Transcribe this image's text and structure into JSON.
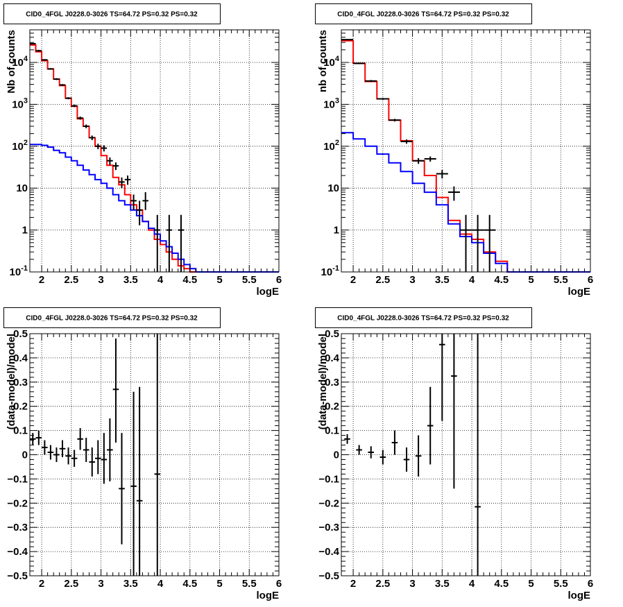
{
  "chart_data": [
    {
      "type": "line",
      "title": "CID0_4FGL J0228.0-3026 TS=64.72 PS=0.32 PS=0.32",
      "xlabel": "logE",
      "ylabel": "Nb of counts",
      "xlim": [
        1.8,
        6.0
      ],
      "ylim": [
        0.1,
        60000
      ],
      "yscale": "log",
      "grid": true,
      "x_ticks": [
        "2",
        "2.5",
        "3",
        "3.5",
        "4",
        "4.5",
        "5",
        "5.5",
        "6"
      ],
      "y_ticks": [
        "10^-1",
        "1",
        "10",
        "10^2",
        "10^3",
        "10^4"
      ],
      "bin_edges": [
        1.8,
        1.9,
        2.0,
        2.1,
        2.2,
        2.3,
        2.4,
        2.5,
        2.6,
        2.7,
        2.8,
        2.9,
        3.0,
        3.1,
        3.2,
        3.3,
        3.4,
        3.5,
        3.6,
        3.7,
        3.8,
        3.9,
        4.0,
        4.1,
        4.2,
        4.3,
        4.4,
        4.5,
        4.6,
        4.7,
        4.8,
        4.9,
        5.0,
        5.1,
        5.2,
        5.3,
        5.4,
        5.5,
        5.6,
        5.7,
        5.8,
        5.9,
        6.0
      ],
      "series": [
        {
          "color": "#ff0000",
          "values": [
            26000,
            18000,
            11000,
            7000,
            4000,
            2800,
            1400,
            900,
            450,
            300,
            160,
            100,
            60,
            35,
            18,
            12,
            7,
            4,
            3,
            1.6,
            1.0,
            0.6,
            0.45,
            0.3,
            0.2,
            0.14,
            0.12,
            0.1,
            0.1,
            0.1,
            0.1,
            0.1,
            0.1,
            0.1,
            0.1,
            0.1,
            0.1,
            0.1,
            0.1,
            0.1,
            0.1,
            0.1
          ]
        },
        {
          "color": "#0000ff",
          "values": [
            110,
            110,
            105,
            95,
            80,
            70,
            55,
            45,
            35,
            27,
            21,
            16,
            13,
            10,
            7,
            5,
            4,
            3,
            2.2,
            1.6,
            1.1,
            0.8,
            0.55,
            0.4,
            0.28,
            0.2,
            0.15,
            0.12,
            0.1,
            0.1,
            0.1,
            0.1,
            0.1,
            0.1,
            0.1,
            0.1,
            0.1,
            0.1,
            0.1,
            0.1,
            0.1,
            0.1
          ]
        },
        {
          "color": "#000000",
          "kind": "errorbars",
          "points": [
            {
              "x": 1.85,
              "y": 28000,
              "lo": 27000,
              "hi": 29000
            },
            {
              "x": 1.95,
              "y": 19000,
              "lo": 18000,
              "hi": 20000
            },
            {
              "x": 2.05,
              "y": 11500,
              "lo": 11000,
              "hi": 12000
            },
            {
              "x": 2.15,
              "y": 7000,
              "lo": 6700,
              "hi": 7300
            },
            {
              "x": 2.25,
              "y": 4000,
              "lo": 3800,
              "hi": 4200
            },
            {
              "x": 2.35,
              "y": 2900,
              "lo": 2750,
              "hi": 3050
            },
            {
              "x": 2.45,
              "y": 1400,
              "lo": 1320,
              "hi": 1480
            },
            {
              "x": 2.55,
              "y": 920,
              "lo": 860,
              "hi": 980
            },
            {
              "x": 2.65,
              "y": 470,
              "lo": 430,
              "hi": 510
            },
            {
              "x": 2.75,
              "y": 300,
              "lo": 270,
              "hi": 330
            },
            {
              "x": 2.85,
              "y": 160,
              "lo": 140,
              "hi": 180
            },
            {
              "x": 2.95,
              "y": 100,
              "lo": 85,
              "hi": 115
            },
            {
              "x": 3.05,
              "y": 90,
              "lo": 75,
              "hi": 105
            },
            {
              "x": 3.15,
              "y": 45,
              "lo": 36,
              "hi": 54
            },
            {
              "x": 3.25,
              "y": 34,
              "lo": 27,
              "hi": 41
            },
            {
              "x": 3.35,
              "y": 14,
              "lo": 10,
              "hi": 18
            },
            {
              "x": 3.45,
              "y": 16,
              "lo": 12,
              "hi": 20
            },
            {
              "x": 3.55,
              "y": 5,
              "lo": 3,
              "hi": 7
            },
            {
              "x": 3.65,
              "y": 3,
              "lo": 1.3,
              "hi": 5
            },
            {
              "x": 3.75,
              "y": 5,
              "lo": 3,
              "hi": 8
            },
            {
              "x": 3.95,
              "y": 1,
              "lo": 0.1,
              "hi": 2.3
            },
            {
              "x": 4.15,
              "y": 1,
              "lo": 0.1,
              "hi": 2.3
            },
            {
              "x": 4.35,
              "y": 1,
              "lo": 0.1,
              "hi": 2.3
            }
          ]
        }
      ]
    },
    {
      "type": "line",
      "title": "CID0_4FGL J0228.0-3026 TS=64.72 PS=0.32 PS=0.32",
      "xlabel": "logE",
      "ylabel": "nb of counts",
      "xlim": [
        1.8,
        6.0
      ],
      "ylim": [
        0.1,
        60000
      ],
      "yscale": "log",
      "grid": true,
      "x_ticks": [
        "2",
        "2.5",
        "3",
        "3.5",
        "4",
        "4.5",
        "5",
        "5.5",
        "6"
      ],
      "y_ticks": [
        "10^-1",
        "1",
        "10",
        "10^2",
        "10^3",
        "10^4"
      ],
      "bin_edges": [
        1.8,
        2.0,
        2.2,
        2.4,
        2.6,
        2.8,
        3.0,
        3.2,
        3.4,
        3.6,
        3.8,
        4.0,
        4.2,
        4.4,
        4.6,
        4.8,
        5.0,
        5.2,
        5.4,
        5.6,
        5.8,
        6.0
      ],
      "series": [
        {
          "color": "#ff0000",
          "values": [
            33000,
            9500,
            3500,
            1350,
            420,
            135,
            45,
            20,
            6,
            1.7,
            0.8,
            0.6,
            0.3,
            0.18,
            0.1,
            0.1,
            0.1,
            0.1,
            0.1,
            0.1,
            0.1
          ]
        },
        {
          "color": "#0000ff",
          "values": [
            210,
            150,
            100,
            65,
            40,
            25,
            13,
            8,
            4,
            1.4,
            0.7,
            0.5,
            0.28,
            0.16,
            0.1,
            0.1,
            0.1,
            0.1,
            0.1,
            0.1,
            0.1
          ]
        },
        {
          "color": "#000000",
          "kind": "errorbars",
          "points": [
            {
              "x": 1.9,
              "y": 35000,
              "lo": 34000,
              "hi": 36000
            },
            {
              "x": 2.1,
              "y": 9500,
              "lo": 9100,
              "hi": 9900
            },
            {
              "x": 2.3,
              "y": 3600,
              "lo": 3400,
              "hi": 3800
            },
            {
              "x": 2.5,
              "y": 1350,
              "lo": 1280,
              "hi": 1420
            },
            {
              "x": 2.7,
              "y": 420,
              "lo": 390,
              "hi": 450
            },
            {
              "x": 2.9,
              "y": 130,
              "lo": 115,
              "hi": 145
            },
            {
              "x": 3.1,
              "y": 45,
              "lo": 38,
              "hi": 52
            },
            {
              "x": 3.3,
              "y": 50,
              "lo": 43,
              "hi": 57
            },
            {
              "x": 3.5,
              "y": 22,
              "lo": 17,
              "hi": 27
            },
            {
              "x": 3.7,
              "y": 8,
              "lo": 5,
              "hi": 11
            },
            {
              "x": 3.9,
              "y": 1,
              "lo": 0.1,
              "hi": 2.3
            },
            {
              "x": 4.1,
              "y": 1,
              "lo": 0.1,
              "hi": 2.3
            },
            {
              "x": 4.3,
              "y": 1,
              "lo": 0.1,
              "hi": 2.3
            }
          ]
        }
      ]
    },
    {
      "type": "scatter",
      "title": "CID0_4FGL J0228.0-3026 TS=64.72 PS=0.32 PS=0.32",
      "xlabel": "logE",
      "ylabel": "(data-model)/model",
      "xlim": [
        1.8,
        6.0
      ],
      "ylim": [
        -0.5,
        0.5
      ],
      "grid": true,
      "x_ticks": [
        "2",
        "2.5",
        "3",
        "3.5",
        "4",
        "4.5",
        "5",
        "5.5",
        "6"
      ],
      "y_ticks": [
        "-0.5",
        "-0.4",
        "-0.3",
        "-0.2",
        "-0.1",
        "0",
        "0.1",
        "0.2",
        "0.3",
        "0.4",
        "0.5"
      ],
      "series": [
        {
          "color": "#000000",
          "kind": "errorbars",
          "points": [
            {
              "x": 1.85,
              "y": 0.065,
              "lo": 0.04,
              "hi": 0.09
            },
            {
              "x": 1.95,
              "y": 0.07,
              "lo": 0.04,
              "hi": 0.1
            },
            {
              "x": 2.05,
              "y": 0.03,
              "lo": 0.0,
              "hi": 0.06
            },
            {
              "x": 2.15,
              "y": 0.01,
              "lo": -0.02,
              "hi": 0.04
            },
            {
              "x": 2.25,
              "y": 0.0,
              "lo": -0.03,
              "hi": 0.03
            },
            {
              "x": 2.35,
              "y": 0.025,
              "lo": -0.01,
              "hi": 0.06
            },
            {
              "x": 2.45,
              "y": -0.005,
              "lo": -0.04,
              "hi": 0.03
            },
            {
              "x": 2.55,
              "y": -0.015,
              "lo": -0.05,
              "hi": 0.02
            },
            {
              "x": 2.65,
              "y": 0.065,
              "lo": 0.02,
              "hi": 0.11
            },
            {
              "x": 2.75,
              "y": 0.02,
              "lo": -0.03,
              "hi": 0.07
            },
            {
              "x": 2.85,
              "y": -0.03,
              "lo": -0.09,
              "hi": 0.03
            },
            {
              "x": 2.95,
              "y": -0.015,
              "lo": -0.08,
              "hi": 0.06
            },
            {
              "x": 3.05,
              "y": -0.02,
              "lo": -0.12,
              "hi": 0.09
            },
            {
              "x": 3.15,
              "y": 0.02,
              "lo": -0.11,
              "hi": 0.15
            },
            {
              "x": 3.25,
              "y": 0.27,
              "lo": 0.05,
              "hi": 0.48
            },
            {
              "x": 3.35,
              "y": -0.14,
              "lo": -0.37,
              "hi": 0.09
            },
            {
              "x": 3.55,
              "y": -0.13,
              "lo": -0.5,
              "hi": 0.26
            },
            {
              "x": 3.65,
              "y": -0.19,
              "lo": -0.5,
              "hi": 0.28
            },
            {
              "x": 3.95,
              "y": -0.08,
              "lo": -0.5,
              "hi": 0.5
            }
          ]
        }
      ]
    },
    {
      "type": "scatter",
      "title": "CID0_4FGL J0228.0-3026 TS=64.72 PS=0.32 PS=0.32",
      "xlabel": "logE",
      "ylabel": "(data-model)/model",
      "xlim": [
        1.8,
        6.0
      ],
      "ylim": [
        -0.5,
        0.5
      ],
      "grid": true,
      "x_ticks": [
        "2",
        "2.5",
        "3",
        "3.5",
        "4",
        "4.5",
        "5",
        "5.5",
        "6"
      ],
      "y_ticks": [
        "-0.5",
        "-0.4",
        "-0.3",
        "-0.2",
        "-0.1",
        "0",
        "0.1",
        "0.2",
        "0.3",
        "0.4",
        "0.5"
      ],
      "series": [
        {
          "color": "#000000",
          "kind": "errorbars",
          "points": [
            {
              "x": 1.9,
              "y": 0.065,
              "lo": 0.045,
              "hi": 0.085
            },
            {
              "x": 2.1,
              "y": 0.02,
              "lo": 0.0,
              "hi": 0.04
            },
            {
              "x": 2.3,
              "y": 0.01,
              "lo": -0.015,
              "hi": 0.035
            },
            {
              "x": 2.5,
              "y": -0.01,
              "lo": -0.04,
              "hi": 0.02
            },
            {
              "x": 2.7,
              "y": 0.05,
              "lo": 0.0,
              "hi": 0.1
            },
            {
              "x": 2.9,
              "y": -0.02,
              "lo": -0.07,
              "hi": 0.03
            },
            {
              "x": 3.1,
              "y": -0.005,
              "lo": -0.09,
              "hi": 0.08
            },
            {
              "x": 3.3,
              "y": 0.12,
              "lo": -0.04,
              "hi": 0.28
            },
            {
              "x": 3.5,
              "y": 0.455,
              "lo": 0.14,
              "hi": 0.5
            },
            {
              "x": 3.7,
              "y": 0.325,
              "lo": -0.14,
              "hi": 0.5
            },
            {
              "x": 4.1,
              "y": -0.215,
              "lo": -0.5,
              "hi": 0.5
            }
          ]
        }
      ]
    }
  ]
}
